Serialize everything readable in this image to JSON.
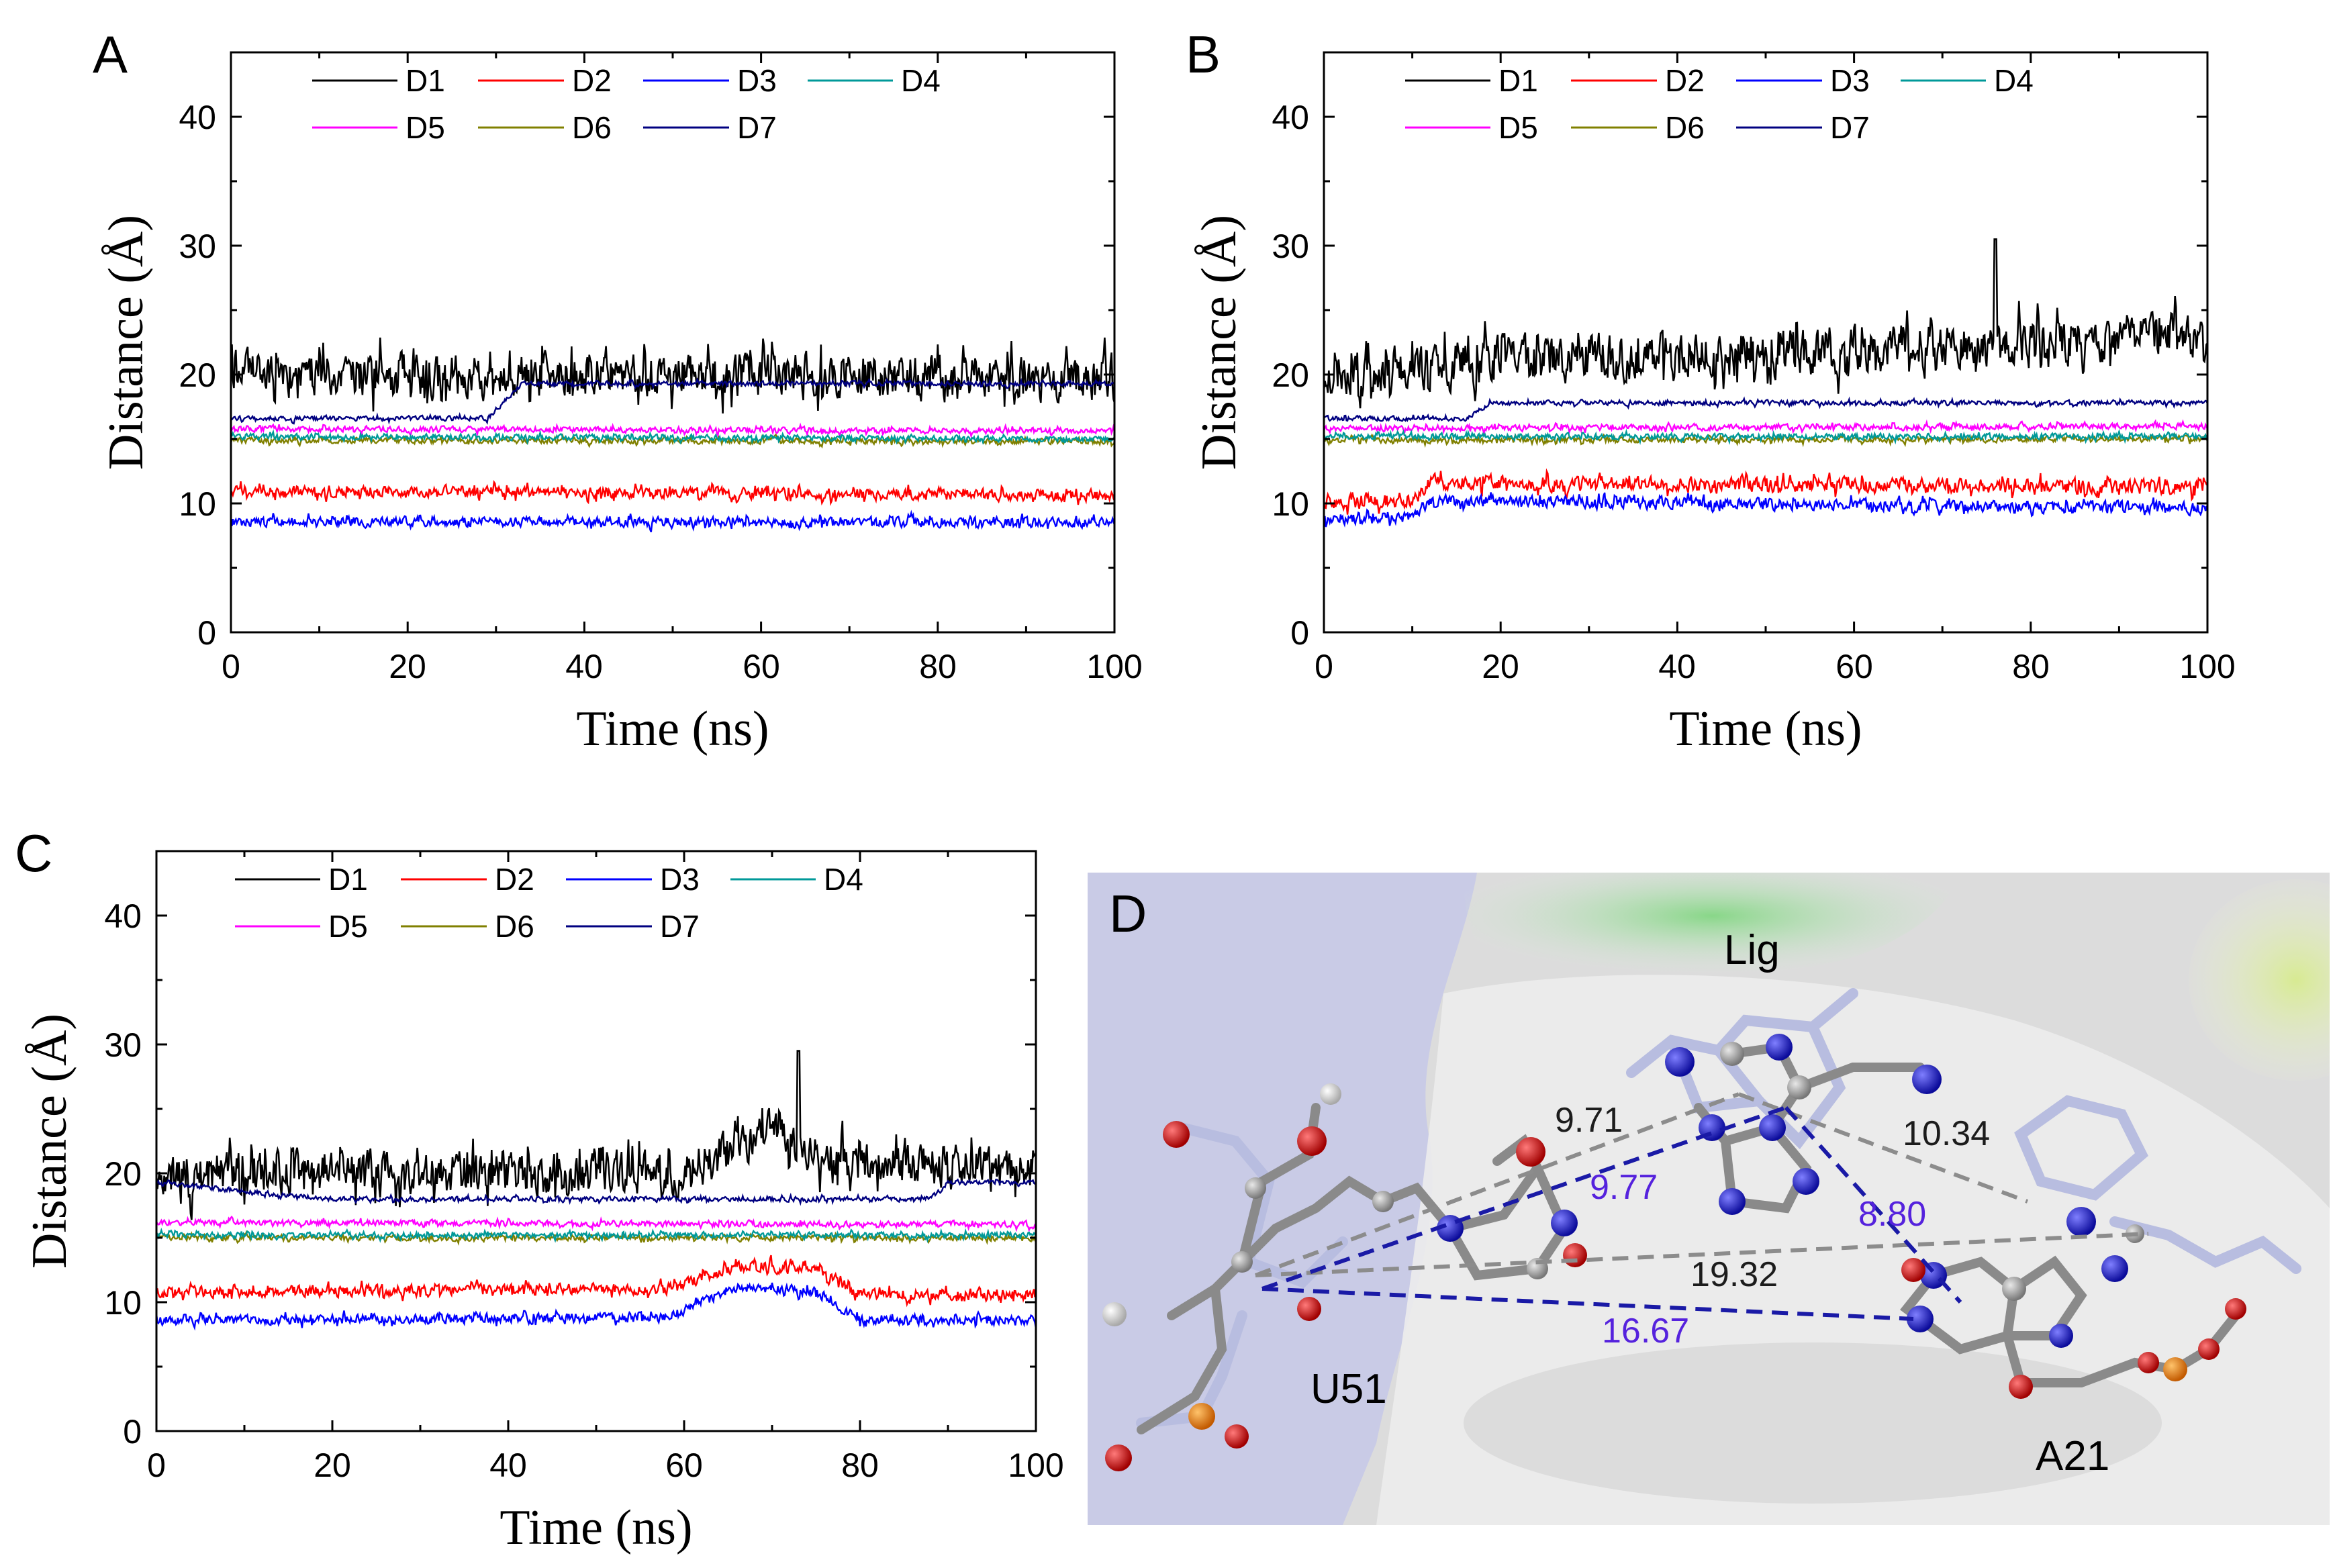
{
  "chart_data": [
    {
      "type": "line",
      "panel": "A",
      "xlabel": "Time (ns)",
      "ylabel": "Distance (Å)",
      "xlim": [
        0,
        100
      ],
      "ylim": [
        0,
        45
      ],
      "xticks": [
        "0",
        "20",
        "40",
        "60",
        "80",
        "100"
      ],
      "yticks": [
        "0",
        "10",
        "20",
        "30",
        "40"
      ],
      "legend_position": "top",
      "series": [
        {
          "name": "D1",
          "color": "#000000",
          "seed": 11,
          "noise": 2.3,
          "path": [
            [
              0,
              20
            ],
            [
              100,
              19.8
            ]
          ],
          "events": []
        },
        {
          "name": "D2",
          "color": "#ff0000",
          "seed": 12,
          "noise": 0.6,
          "path": [
            [
              0,
              11
            ],
            [
              100,
              10.6
            ]
          ],
          "events": []
        },
        {
          "name": "D3",
          "color": "#0000ff",
          "seed": 13,
          "noise": 0.5,
          "path": [
            [
              0,
              8.6
            ],
            [
              100,
              8.5
            ]
          ],
          "events": []
        },
        {
          "name": "D4",
          "color": "#009999",
          "seed": 14,
          "noise": 0.3,
          "path": [
            [
              0,
              15.2
            ],
            [
              100,
              15.0
            ]
          ],
          "events": []
        },
        {
          "name": "D5",
          "color": "#ff00ff",
          "seed": 15,
          "noise": 0.3,
          "path": [
            [
              0,
              15.8
            ],
            [
              100,
              15.6
            ]
          ],
          "events": []
        },
        {
          "name": "D6",
          "color": "#808000",
          "seed": 16,
          "noise": 0.3,
          "path": [
            [
              0,
              14.9
            ],
            [
              100,
              14.8
            ]
          ],
          "events": []
        },
        {
          "name": "D7",
          "color": "#000080",
          "seed": 17,
          "noise": 0.25,
          "path": [
            [
              0,
              16.6
            ],
            [
              29,
              16.6
            ],
            [
              33,
              19.3
            ],
            [
              100,
              19.3
            ]
          ],
          "events": []
        }
      ]
    },
    {
      "type": "line",
      "panel": "B",
      "xlabel": "Time (ns)",
      "ylabel": "Distance (Å)",
      "xlim": [
        0,
        100
      ],
      "ylim": [
        0,
        45
      ],
      "xticks": [
        "0",
        "20",
        "40",
        "60",
        "80",
        "100"
      ],
      "yticks": [
        "0",
        "10",
        "20",
        "30",
        "40"
      ],
      "legend_position": "top",
      "series": [
        {
          "name": "D1",
          "color": "#000000",
          "seed": 21,
          "noise": 2.4,
          "path": [
            [
              0,
              20
            ],
            [
              20,
              21
            ],
            [
              100,
              23
            ]
          ],
          "events": [
            [
              76,
              30.5
            ]
          ]
        },
        {
          "name": "D2",
          "color": "#ff0000",
          "seed": 22,
          "noise": 0.8,
          "path": [
            [
              0,
              10.2
            ],
            [
              10,
              10.2
            ],
            [
              12,
              11.6
            ],
            [
              100,
              11.2
            ]
          ],
          "events": []
        },
        {
          "name": "D3",
          "color": "#0000ff",
          "seed": 23,
          "noise": 0.6,
          "path": [
            [
              0,
              8.8
            ],
            [
              10,
              9.0
            ],
            [
              12,
              10.2
            ],
            [
              100,
              9.6
            ]
          ],
          "events": []
        },
        {
          "name": "D4",
          "color": "#009999",
          "seed": 24,
          "noise": 0.3,
          "path": [
            [
              0,
              15.2
            ],
            [
              100,
              15.2
            ]
          ],
          "events": []
        },
        {
          "name": "D5",
          "color": "#ff00ff",
          "seed": 25,
          "noise": 0.3,
          "path": [
            [
              0,
              15.8
            ],
            [
              100,
              16.0
            ]
          ],
          "events": []
        },
        {
          "name": "D6",
          "color": "#808000",
          "seed": 26,
          "noise": 0.3,
          "path": [
            [
              0,
              14.9
            ],
            [
              100,
              15.0
            ]
          ],
          "events": []
        },
        {
          "name": "D7",
          "color": "#000080",
          "seed": 27,
          "noise": 0.25,
          "path": [
            [
              0,
              16.6
            ],
            [
              16,
              16.6
            ],
            [
              19,
              17.8
            ],
            [
              100,
              17.8
            ]
          ],
          "events": []
        }
      ]
    },
    {
      "type": "line",
      "panel": "C",
      "xlabel": "Time (ns)",
      "ylabel": "Distance (Å)",
      "xlim": [
        0,
        100
      ],
      "ylim": [
        0,
        45
      ],
      "xticks": [
        "0",
        "20",
        "40",
        "60",
        "80",
        "100"
      ],
      "yticks": [
        "0",
        "10",
        "20",
        "30",
        "40"
      ],
      "legend_position": "top",
      "series": [
        {
          "name": "D1",
          "color": "#000000",
          "seed": 31,
          "noise": 2.2,
          "path": [
            [
              0,
              20
            ],
            [
              60,
              20
            ],
            [
              70,
              23.5
            ],
            [
              76,
              21
            ],
            [
              100,
              20.5
            ]
          ],
          "events": [
            [
              73,
              29.5
            ]
          ]
        },
        {
          "name": "D2",
          "color": "#ff0000",
          "seed": 32,
          "noise": 0.6,
          "path": [
            [
              0,
              10.8
            ],
            [
              58,
              11
            ],
            [
              66,
              12.8
            ],
            [
              75,
              12.6
            ],
            [
              80,
              10.6
            ],
            [
              100,
              10.6
            ]
          ],
          "events": []
        },
        {
          "name": "D3",
          "color": "#0000ff",
          "seed": 33,
          "noise": 0.5,
          "path": [
            [
              0,
              8.6
            ],
            [
              58,
              8.8
            ],
            [
              66,
              11.2
            ],
            [
              75,
              10.8
            ],
            [
              80,
              8.6
            ],
            [
              100,
              8.6
            ]
          ],
          "events": []
        },
        {
          "name": "D4",
          "color": "#009999",
          "seed": 34,
          "noise": 0.3,
          "path": [
            [
              0,
              15.2
            ],
            [
              100,
              15.2
            ]
          ],
          "events": []
        },
        {
          "name": "D5",
          "color": "#ff00ff",
          "seed": 35,
          "noise": 0.3,
          "path": [
            [
              0,
              16.2
            ],
            [
              100,
              16.0
            ]
          ],
          "events": []
        },
        {
          "name": "D6",
          "color": "#808000",
          "seed": 36,
          "noise": 0.3,
          "path": [
            [
              0,
              15.0
            ],
            [
              100,
              15.0
            ]
          ],
          "events": []
        },
        {
          "name": "D7",
          "color": "#000080",
          "seed": 37,
          "noise": 0.25,
          "path": [
            [
              0,
              19.3
            ],
            [
              10,
              18.6
            ],
            [
              20,
              18.0
            ],
            [
              88,
              18.0
            ],
            [
              90,
              19.3
            ],
            [
              100,
              19.3
            ]
          ],
          "events": []
        }
      ]
    }
  ],
  "panel_d": {
    "letter": "D",
    "labels": {
      "lig": "Lig",
      "u51": "U51",
      "a21": "A21"
    },
    "distances": {
      "d971": "9.71",
      "d1034": "10.34",
      "d977": "9.77",
      "d880": "8.80",
      "d1932": "19.32",
      "d1667": "16.67"
    },
    "colors": {
      "black_dist": "#333333",
      "purple_dist": "#5522dd",
      "blue_dash": "#1a1aa6",
      "gray_dash": "#8c8c8c"
    }
  }
}
